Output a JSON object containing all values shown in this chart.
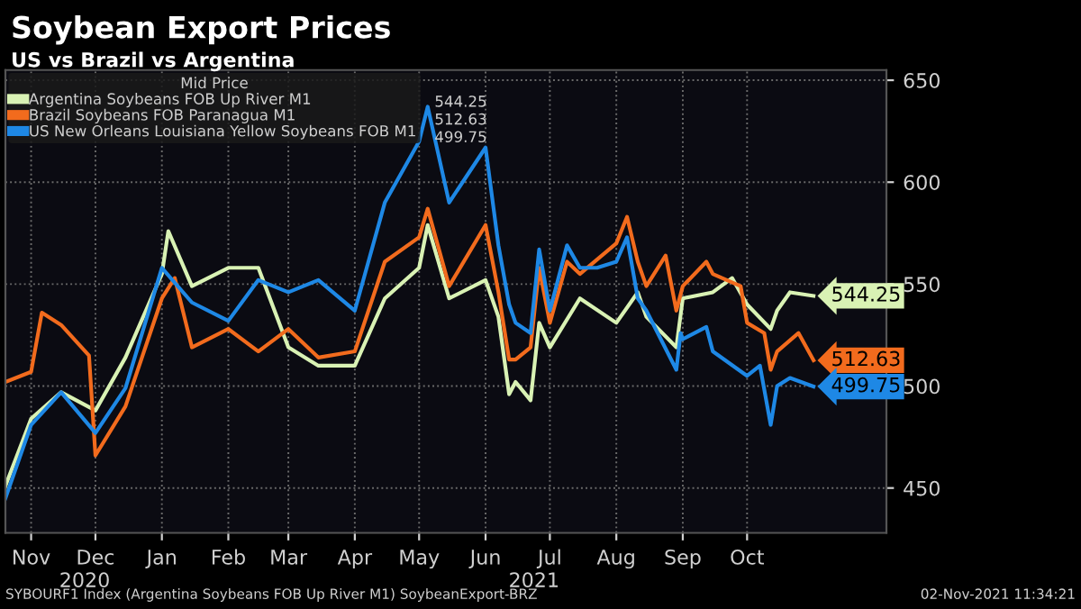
{
  "chart_data": {
    "type": "line",
    "title": "Soybean Export Prices",
    "subtitle": "US vs Brazil vs Argentina",
    "legend_title": "Mid Price",
    "series": [
      {
        "name": "Argentina Soybeans FOB Up River M1",
        "color": "#d9f2b4",
        "x": [
          "2020-10-20",
          "2020-11-01",
          "2020-11-15",
          "2020-12-01",
          "2020-12-15",
          "2021-01-01",
          "2021-01-04",
          "2021-01-15",
          "2021-02-01",
          "2021-02-15",
          "2021-03-01",
          "2021-03-15",
          "2021-04-01",
          "2021-04-15",
          "2021-05-01",
          "2021-05-05",
          "2021-05-15",
          "2021-06-01",
          "2021-06-07",
          "2021-06-12",
          "2021-06-15",
          "2021-06-22",
          "2021-06-26",
          "2021-07-01",
          "2021-07-15",
          "2021-08-01",
          "2021-08-11",
          "2021-08-15",
          "2021-08-29",
          "2021-09-01",
          "2021-09-15",
          "2021-09-24",
          "2021-10-01",
          "2021-10-12",
          "2021-10-15",
          "2021-10-21",
          "2021-11-01"
        ],
        "values": [
          451,
          484,
          497,
          488,
          514,
          555,
          576,
          549,
          558,
          558,
          519,
          510,
          510,
          543,
          558,
          579,
          543,
          552,
          534,
          496,
          502,
          493,
          531,
          519,
          543,
          531,
          546,
          534,
          519,
          543,
          546,
          553,
          540,
          528,
          537,
          546,
          544.25
        ],
        "value_labels": [
          null,
          null,
          null,
          null,
          null,
          null,
          null,
          null,
          null,
          null,
          null,
          null,
          null,
          null,
          null,
          null,
          null,
          null,
          null,
          null,
          null,
          null,
          null,
          null,
          null,
          null,
          null,
          null,
          null,
          null,
          null,
          null,
          null,
          null,
          null,
          null,
          "544.25"
        ]
      },
      {
        "name": "Brazil Soybeans FOB Paranagua M1",
        "color": "#f26b1d",
        "x": [
          "2020-10-20",
          "2020-11-01",
          "2020-11-06",
          "2020-11-15",
          "2020-11-28",
          "2020-12-01",
          "2020-12-15",
          "2021-01-01",
          "2021-01-07",
          "2021-01-15",
          "2021-02-01",
          "2021-02-15",
          "2021-03-01",
          "2021-03-15",
          "2021-04-01",
          "2021-04-15",
          "2021-05-01",
          "2021-05-05",
          "2021-05-15",
          "2021-06-01",
          "2021-06-07",
          "2021-06-12",
          "2021-06-15",
          "2021-06-22",
          "2021-06-26",
          "2021-07-01",
          "2021-07-09",
          "2021-07-15",
          "2021-08-01",
          "2021-08-06",
          "2021-08-11",
          "2021-08-15",
          "2021-08-24",
          "2021-08-29",
          "2021-09-01",
          "2021-09-12",
          "2021-09-15",
          "2021-09-28",
          "2021-10-01",
          "2021-10-09",
          "2021-10-12",
          "2021-10-15",
          "2021-10-25",
          "2021-11-01"
        ],
        "values": [
          502,
          507,
          536,
          530,
          515,
          466,
          490,
          543,
          553,
          519,
          528,
          517,
          528,
          514,
          517,
          561,
          573,
          587,
          549,
          579,
          546,
          513,
          513,
          519,
          558,
          531,
          561,
          555,
          570,
          583,
          561,
          549,
          564,
          537,
          549,
          561,
          555,
          549,
          531,
          526,
          508,
          517,
          526,
          512.63
        ],
        "value_labels": [
          null,
          null,
          null,
          null,
          null,
          null,
          null,
          null,
          null,
          null,
          null,
          null,
          null,
          null,
          null,
          null,
          null,
          null,
          null,
          null,
          null,
          null,
          null,
          null,
          null,
          null,
          null,
          null,
          null,
          null,
          null,
          null,
          null,
          null,
          null,
          null,
          null,
          null,
          null,
          null,
          null,
          null,
          null,
          "512.63"
        ]
      },
      {
        "name": "US New Orleans Louisiana Yellow Soybeans FOB M1",
        "color": "#1e88e5",
        "x": [
          "2020-10-20",
          "2020-11-01",
          "2020-11-15",
          "2020-12-01",
          "2020-12-15",
          "2021-01-01",
          "2021-01-15",
          "2021-02-01",
          "2021-02-15",
          "2021-03-01",
          "2021-03-15",
          "2021-04-01",
          "2021-04-15",
          "2021-05-01",
          "2021-05-05",
          "2021-05-15",
          "2021-06-01",
          "2021-06-07",
          "2021-06-12",
          "2021-06-15",
          "2021-06-22",
          "2021-06-26",
          "2021-07-01",
          "2021-07-09",
          "2021-07-15",
          "2021-07-23",
          "2021-08-01",
          "2021-08-06",
          "2021-08-11",
          "2021-08-15",
          "2021-08-29",
          "2021-08-31",
          "2021-09-01",
          "2021-09-12",
          "2021-09-15",
          "2021-10-01",
          "2021-10-07",
          "2021-10-12",
          "2021-10-15",
          "2021-10-21",
          "2021-11-01"
        ],
        "values": [
          445,
          481,
          497,
          477,
          499,
          558,
          541,
          532,
          552,
          546,
          552,
          537,
          590,
          620,
          637,
          590,
          617,
          569,
          540,
          531,
          526,
          567,
          537,
          569,
          558,
          558,
          561,
          573,
          543,
          537,
          508,
          526,
          523,
          529,
          517,
          505,
          510,
          481,
          500,
          504,
          499.75
        ],
        "value_labels": [
          null,
          null,
          null,
          null,
          null,
          null,
          null,
          null,
          null,
          null,
          null,
          null,
          null,
          null,
          null,
          null,
          null,
          null,
          null,
          null,
          null,
          null,
          null,
          null,
          null,
          null,
          null,
          null,
          null,
          null,
          null,
          null,
          null,
          null,
          null,
          null,
          null,
          null,
          null,
          null,
          "499.75"
        ]
      }
    ],
    "xlim": [
      "2020-10-20",
      "2021-12-05"
    ],
    "xticks": [
      {
        "value": "2020-11-01",
        "label": "Nov"
      },
      {
        "value": "2020-12-01",
        "label": "Dec"
      },
      {
        "value": "2021-01-01",
        "label": "Jan"
      },
      {
        "value": "2021-02-01",
        "label": "Feb"
      },
      {
        "value": "2021-03-01",
        "label": "Mar"
      },
      {
        "value": "2021-04-01",
        "label": "Apr"
      },
      {
        "value": "2021-05-01",
        "label": "May"
      },
      {
        "value": "2021-06-01",
        "label": "Jun"
      },
      {
        "value": "2021-07-01",
        "label": "Jul"
      },
      {
        "value": "2021-08-01",
        "label": "Aug"
      },
      {
        "value": "2021-09-01",
        "label": "Sep"
      },
      {
        "value": "2021-10-01",
        "label": "Oct"
      }
    ],
    "ylim": [
      428,
      655
    ],
    "yticks": [
      450,
      500,
      550,
      600,
      650
    ],
    "grid": true,
    "legend": "top left",
    "line_style": "solid",
    "marker": "none",
    "annotations": [
      "2020",
      "2021",
      "SYBOURF1 Index (Argentina Soybeans FOB Up River M1) SoybeanExport-BRZ",
      "02-Nov-2021 11:34:21"
    ]
  }
}
